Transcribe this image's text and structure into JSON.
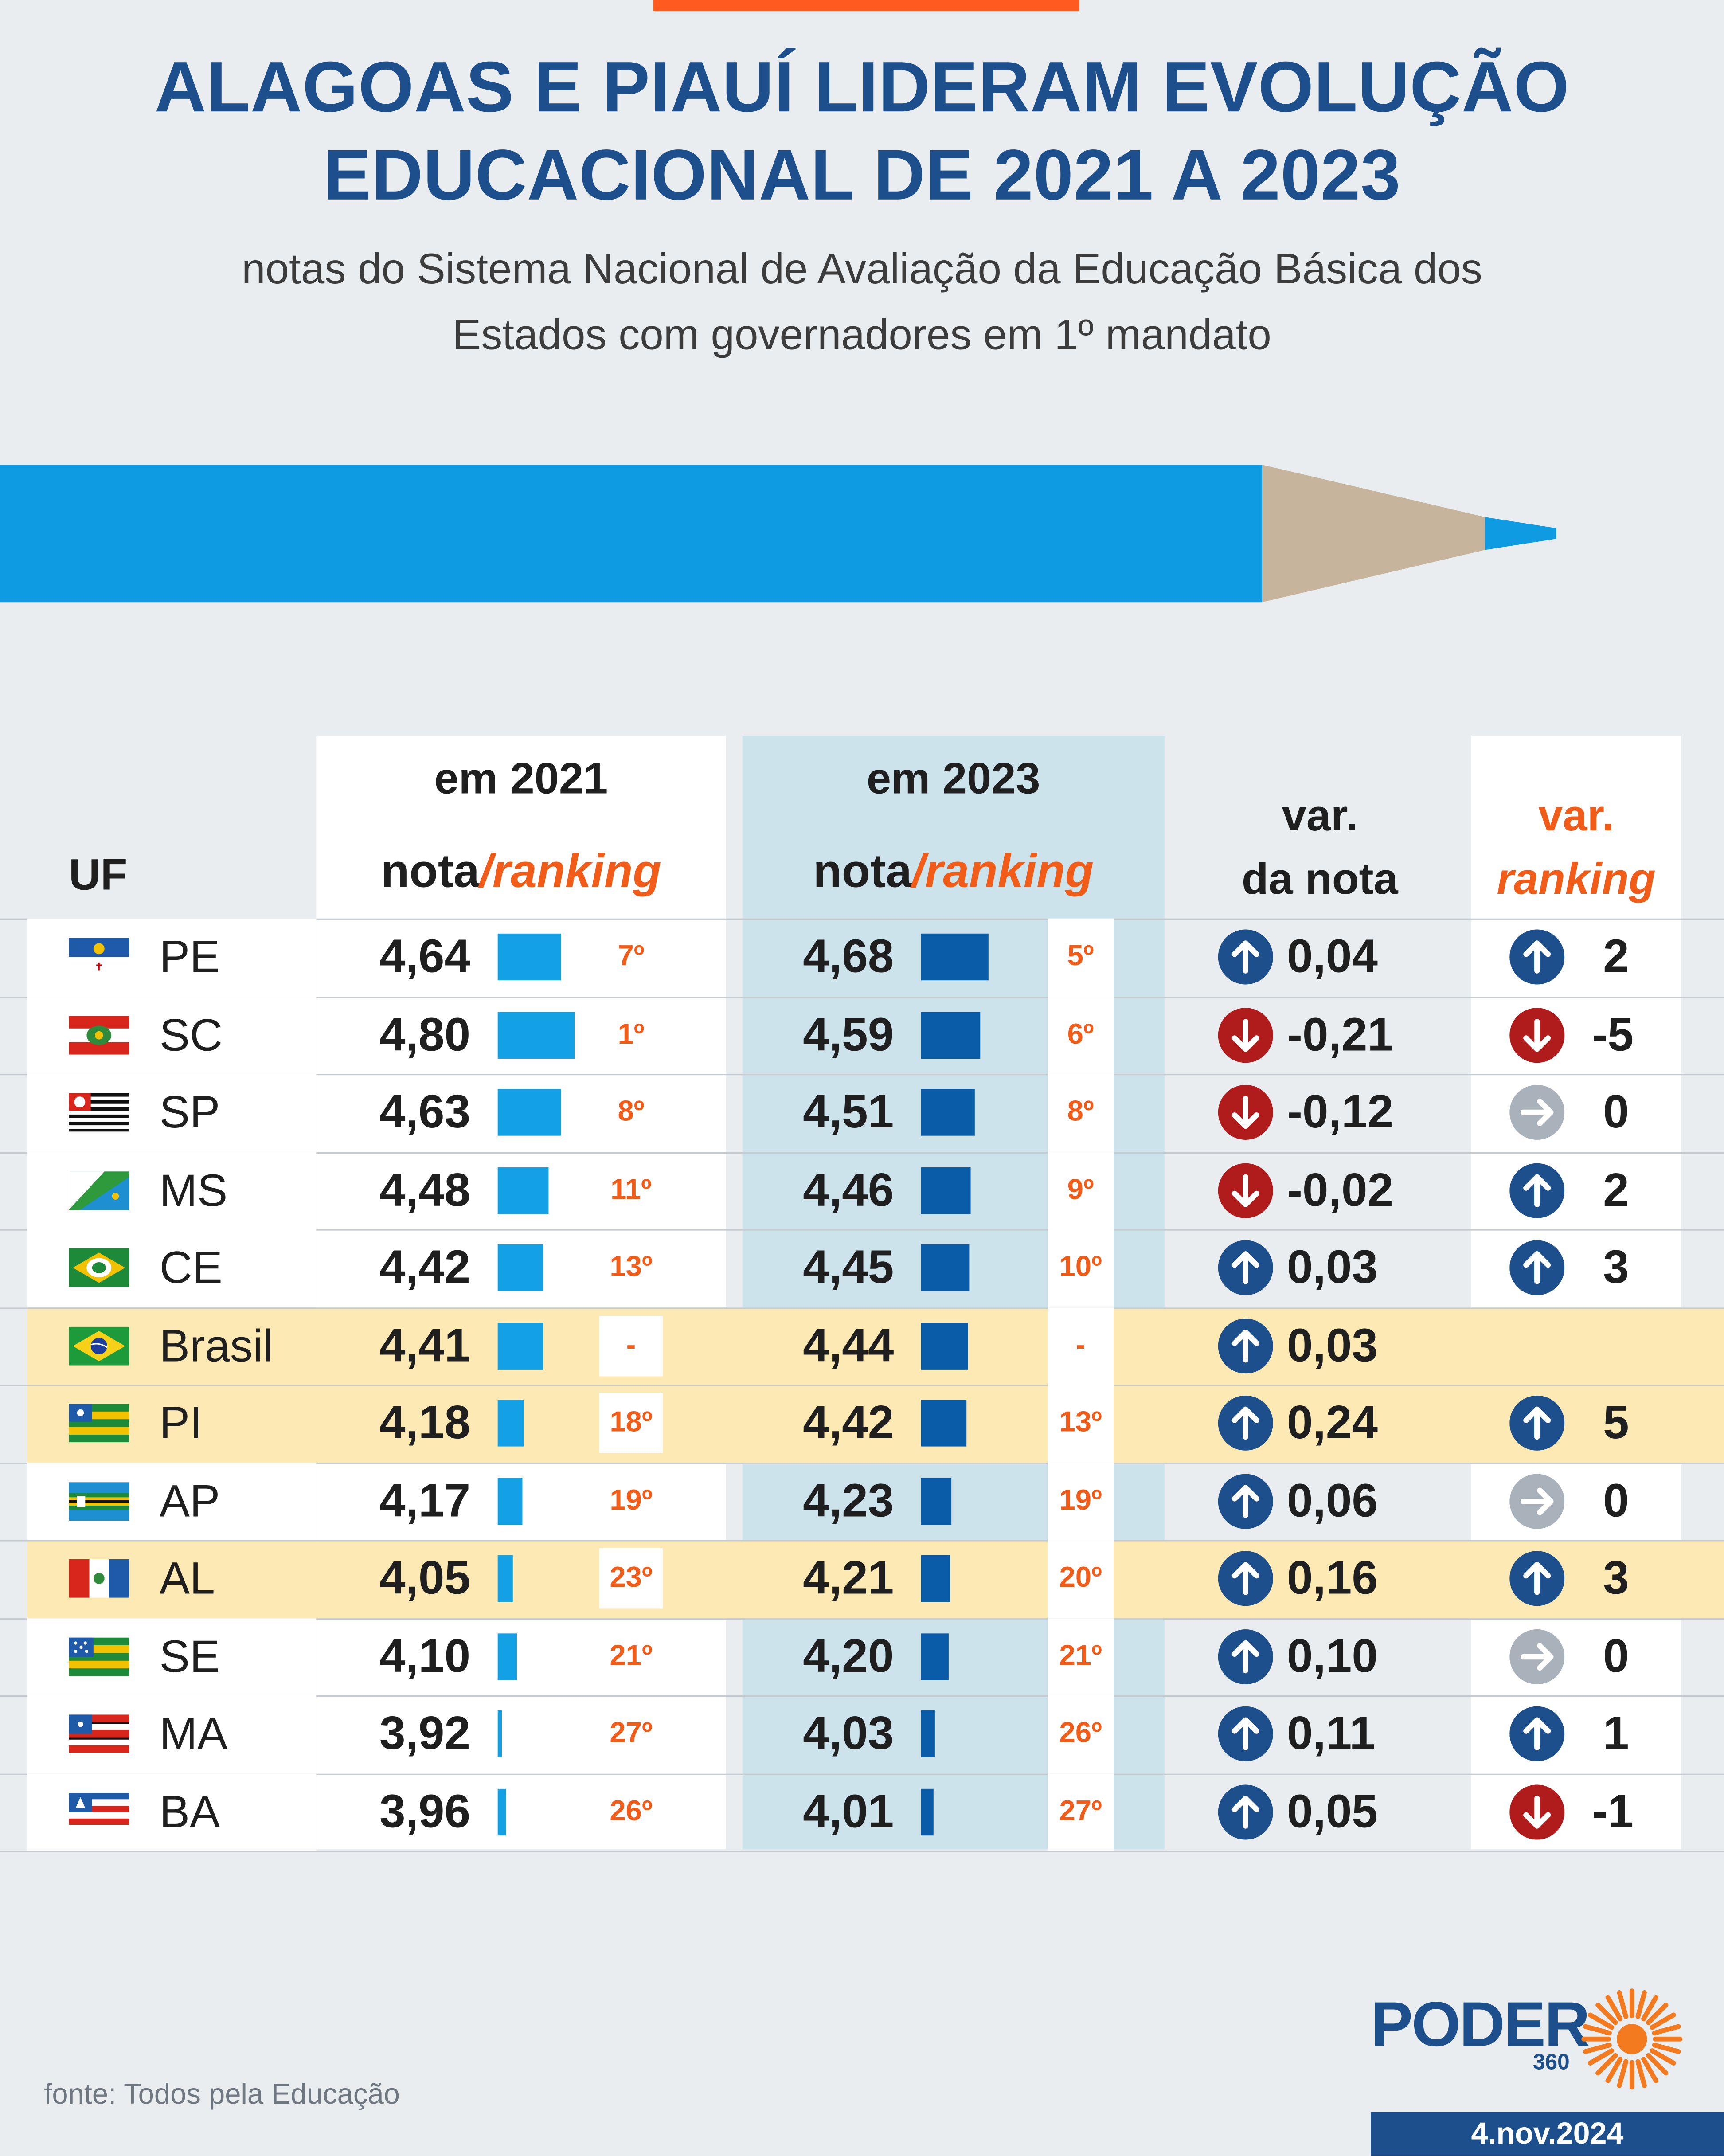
{
  "title_line1": "ALAGOAS E PIAUÍ LIDERAM EVOLUÇÃO",
  "title_line2": "EDUCACIONAL DE 2021 A 2023",
  "subtitle_line1": "notas do Sistema Nacional de Avaliação da Educação Básica dos",
  "subtitle_line2": "Estados com governadores em 1º mandato",
  "headers": {
    "uf": "UF",
    "year2021": "em 2021",
    "year2023": "em 2023",
    "nota": "nota",
    "slash_ranking": "/ranking",
    "var_nota_line1": "var.",
    "var_nota_line2": "da nota",
    "var_rank_line1": "var.",
    "var_rank_line2": "ranking"
  },
  "colors": {
    "bar2021": "#13a0e5",
    "bar2023": "#0a5ba8",
    "up": "#1d4f8c",
    "down": "#b01c1c",
    "neutral": "#a9b2ba",
    "highlight": "#fde9b4",
    "accent": "#f25c19"
  },
  "chart_data": {
    "type": "table",
    "columns": [
      "UF",
      "nota 2021",
      "ranking 2021",
      "nota 2023",
      "ranking 2023",
      "var. da nota",
      "var. ranking"
    ],
    "rows": [
      {
        "uf": "PE",
        "flag": "pernambuco-flag",
        "n21": "4,64",
        "v21": 4.64,
        "r21": "7º",
        "n23": "4,68",
        "v23": 4.68,
        "r23": "5º",
        "vn": "0,04",
        "vn_dir": "up",
        "vr": "2",
        "vr_dir": "up",
        "highlight": false
      },
      {
        "uf": "SC",
        "flag": "santa-catarina-flag",
        "n21": "4,80",
        "v21": 4.8,
        "r21": "1º",
        "n23": "4,59",
        "v23": 4.59,
        "r23": "6º",
        "vn": "-0,21",
        "vn_dir": "down",
        "vr": "-5",
        "vr_dir": "down",
        "highlight": false
      },
      {
        "uf": "SP",
        "flag": "sao-paulo-flag",
        "n21": "4,63",
        "v21": 4.63,
        "r21": "8º",
        "n23": "4,51",
        "v23": 4.51,
        "r23": "8º",
        "vn": "-0,12",
        "vn_dir": "down",
        "vr": "0",
        "vr_dir": "neutral",
        "highlight": false
      },
      {
        "uf": "MS",
        "flag": "mato-grosso-do-sul-flag",
        "n21": "4,48",
        "v21": 4.48,
        "r21": "11º",
        "n23": "4,46",
        "v23": 4.46,
        "r23": "9º",
        "vn": "-0,02",
        "vn_dir": "down",
        "vr": "2",
        "vr_dir": "up",
        "highlight": false
      },
      {
        "uf": "CE",
        "flag": "ceara-flag",
        "n21": "4,42",
        "v21": 4.42,
        "r21": "13º",
        "n23": "4,45",
        "v23": 4.45,
        "r23": "10º",
        "vn": "0,03",
        "vn_dir": "up",
        "vr": "3",
        "vr_dir": "up",
        "highlight": false
      },
      {
        "uf": "Brasil",
        "flag": "brasil-flag",
        "n21": "4,41",
        "v21": 4.41,
        "r21": "-",
        "n23": "4,44",
        "v23": 4.44,
        "r23": "-",
        "vn": "0,03",
        "vn_dir": "up",
        "vr": "",
        "vr_dir": "none",
        "highlight": true
      },
      {
        "uf": "PI",
        "flag": "piaui-flag",
        "n21": "4,18",
        "v21": 4.18,
        "r21": "18º",
        "n23": "4,42",
        "v23": 4.42,
        "r23": "13º",
        "vn": "0,24",
        "vn_dir": "up",
        "vr": "5",
        "vr_dir": "up",
        "highlight": true
      },
      {
        "uf": "AP",
        "flag": "amapa-flag",
        "n21": "4,17",
        "v21": 4.17,
        "r21": "19º",
        "n23": "4,23",
        "v23": 4.23,
        "r23": "19º",
        "vn": "0,06",
        "vn_dir": "up",
        "vr": "0",
        "vr_dir": "neutral",
        "highlight": false
      },
      {
        "uf": "AL",
        "flag": "alagoas-flag",
        "n21": "4,05",
        "v21": 4.05,
        "r21": "23º",
        "n23": "4,21",
        "v23": 4.21,
        "r23": "20º",
        "vn": "0,16",
        "vn_dir": "up",
        "vr": "3",
        "vr_dir": "up",
        "highlight": true
      },
      {
        "uf": "SE",
        "flag": "sergipe-flag",
        "n21": "4,10",
        "v21": 4.1,
        "r21": "21º",
        "n23": "4,20",
        "v23": 4.2,
        "r23": "21º",
        "vn": "0,10",
        "vn_dir": "up",
        "vr": "0",
        "vr_dir": "neutral",
        "highlight": false
      },
      {
        "uf": "MA",
        "flag": "maranhao-flag",
        "n21": "3,92",
        "v21": 3.92,
        "r21": "27º",
        "n23": "4,03",
        "v23": 4.03,
        "r23": "26º",
        "vn": "0,11",
        "vn_dir": "up",
        "vr": "1",
        "vr_dir": "up",
        "highlight": false
      },
      {
        "uf": "BA",
        "flag": "bahia-flag",
        "n21": "3,96",
        "v21": 3.96,
        "r21": "26º",
        "n23": "4,01",
        "v23": 4.01,
        "r23": "27º",
        "vn": "0,05",
        "vn_dir": "up",
        "vr": "-1",
        "vr_dir": "down",
        "highlight": false
      }
    ]
  },
  "footnote": "fonte: Todos pela Educação",
  "logo_word": "PODER",
  "logo_num": "360",
  "date": "4.nov.2024"
}
